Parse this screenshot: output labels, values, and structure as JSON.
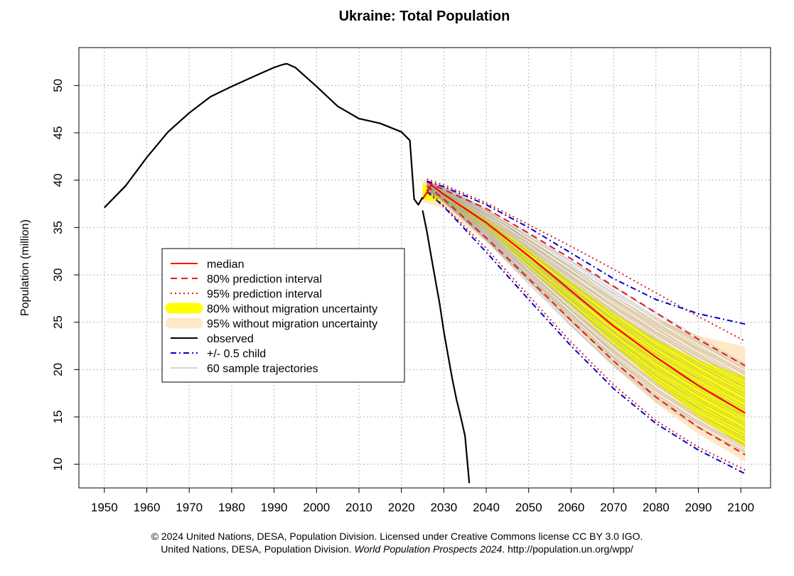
{
  "chart_data": {
    "type": "line",
    "title": "Ukraine: Total Population",
    "ylabel": "Population (million)",
    "xlabel": "",
    "xlim": [
      1944,
      2107
    ],
    "ylim": [
      7.5,
      54
    ],
    "x_ticks": [
      1950,
      1960,
      1970,
      1980,
      1990,
      2000,
      2010,
      2020,
      2030,
      2040,
      2050,
      2060,
      2070,
      2080,
      2090,
      2100
    ],
    "y_ticks": [
      10,
      15,
      20,
      25,
      30,
      35,
      40,
      45,
      50
    ],
    "grid": true,
    "legend_position": "center-left",
    "legend": [
      {
        "label": "median",
        "style": "solid",
        "color": "#ff0000"
      },
      {
        "label": "80% prediction interval",
        "style": "dashed",
        "color": "#e41a1c"
      },
      {
        "label": "95% prediction interval",
        "style": "dotted",
        "color": "#e41a1c"
      },
      {
        "label": "80% without migration uncertainty",
        "style": "band",
        "color": "#ffff00"
      },
      {
        "label": "95% without migration uncertainty",
        "style": "band",
        "color": "#fde9c7"
      },
      {
        "label": "observed",
        "style": "solid",
        "color": "#000000"
      },
      {
        "label": "+/- 0.5 child",
        "style": "dotdash",
        "color": "#0000cd"
      },
      {
        "label": "60 sample trajectories",
        "style": "thin",
        "color": "#aaaaaa"
      }
    ],
    "series": [
      {
        "name": "observed",
        "x": [
          1950,
          1955,
          1960,
          1965,
          1970,
          1975,
          1980,
          1985,
          1990,
          1992,
          1993,
          1995,
          2000,
          2005,
          2010,
          2015,
          2020,
          2022,
          2023,
          2024,
          2025
        ],
        "y": [
          37.1,
          39.4,
          42.4,
          45.1,
          47.1,
          48.8,
          49.9,
          50.9,
          51.9,
          52.2,
          52.3,
          51.9,
          49.9,
          47.8,
          46.5,
          46.0,
          45.1,
          44.2,
          38.0,
          37.4,
          38.2
        ]
      },
      {
        "name": "observed (steep decline segment)",
        "x": [
          2025,
          2026,
          2027,
          2028,
          2029,
          2030,
          2031,
          2032,
          2033,
          2034,
          2035,
          2036
        ],
        "y": [
          36.8,
          34.6,
          32.0,
          29.5,
          27.0,
          24.0,
          21.5,
          19.0,
          16.8,
          15.0,
          13.0,
          8.0
        ]
      },
      {
        "name": "median",
        "x": [
          2025,
          2026,
          2027,
          2030,
          2040,
          2050,
          2060,
          2070,
          2080,
          2090,
          2101
        ],
        "y": [
          38.0,
          38.7,
          39.5,
          38.5,
          35.5,
          32.0,
          28.3,
          24.6,
          21.3,
          18.3,
          15.4
        ]
      },
      {
        "name": "80% PI upper",
        "x": [
          2026,
          2030,
          2040,
          2050,
          2060,
          2070,
          2080,
          2090,
          2101
        ],
        "y": [
          39.8,
          39.0,
          37.0,
          34.4,
          31.7,
          28.8,
          26.0,
          23.2,
          20.4
        ]
      },
      {
        "name": "80% PI lower",
        "x": [
          2026,
          2030,
          2040,
          2050,
          2060,
          2070,
          2080,
          2090,
          2101
        ],
        "y": [
          39.4,
          38.0,
          33.9,
          29.6,
          25.2,
          20.9,
          17.1,
          13.9,
          11.0
        ]
      },
      {
        "name": "95% PI upper",
        "x": [
          2026,
          2030,
          2040,
          2050,
          2060,
          2070,
          2080,
          2090,
          2101
        ],
        "y": [
          40.1,
          39.5,
          37.6,
          35.3,
          33.0,
          30.6,
          28.1,
          25.6,
          23.0
        ]
      },
      {
        "name": "95% PI lower",
        "x": [
          2026,
          2030,
          2040,
          2050,
          2060,
          2070,
          2080,
          2090,
          2101
        ],
        "y": [
          39.0,
          37.3,
          32.8,
          27.8,
          22.9,
          18.4,
          14.6,
          11.8,
          9.4
        ]
      },
      {
        "name": "+0.5 child",
        "x": [
          2026,
          2030,
          2040,
          2050,
          2060,
          2070,
          2080,
          2090,
          2101
        ],
        "y": [
          39.9,
          39.3,
          37.4,
          35.0,
          32.3,
          29.6,
          27.4,
          25.9,
          24.8
        ]
      },
      {
        "name": "-0.5 child",
        "x": [
          2026,
          2030,
          2040,
          2050,
          2060,
          2070,
          2080,
          2090,
          2101
        ],
        "y": [
          38.8,
          37.2,
          32.4,
          27.4,
          22.5,
          18.0,
          14.3,
          11.5,
          9.0
        ]
      },
      {
        "name": "80% without migration uncertainty upper",
        "x": [
          2025,
          2030,
          2040,
          2050,
          2060,
          2070,
          2080,
          2090,
          2101
        ],
        "y": [
          39.6,
          38.8,
          36.0,
          32.7,
          29.3,
          26.0,
          23.2,
          21.0,
          19.3
        ]
      },
      {
        "name": "80% without migration uncertainty lower",
        "x": [
          2025,
          2030,
          2040,
          2050,
          2060,
          2070,
          2080,
          2090,
          2101
        ],
        "y": [
          38.0,
          37.6,
          34.8,
          30.8,
          26.8,
          22.6,
          18.6,
          15.0,
          11.8
        ]
      },
      {
        "name": "95% without migration uncertainty upper",
        "x": [
          2025,
          2030,
          2040,
          2050,
          2060,
          2070,
          2080,
          2090,
          2101
        ],
        "y": [
          40.0,
          39.4,
          37.0,
          34.0,
          30.8,
          27.7,
          25.3,
          23.6,
          22.4
        ]
      },
      {
        "name": "95% without migration uncertainty lower",
        "x": [
          2025,
          2030,
          2040,
          2050,
          2060,
          2070,
          2080,
          2090,
          2101
        ],
        "y": [
          37.7,
          37.0,
          33.5,
          29.2,
          24.8,
          20.4,
          16.4,
          13.2,
          10.3
        ]
      }
    ]
  },
  "captions": {
    "line1": "© 2024 United Nations, DESA, Population Division. Licensed under Creative Commons license CC BY 3.0 IGO.",
    "line2_prefix": "United Nations, DESA, Population Division. ",
    "line2_italic": "World Population Prospects 2024",
    "line2_suffix": ". http://population.un.org/wpp/"
  }
}
